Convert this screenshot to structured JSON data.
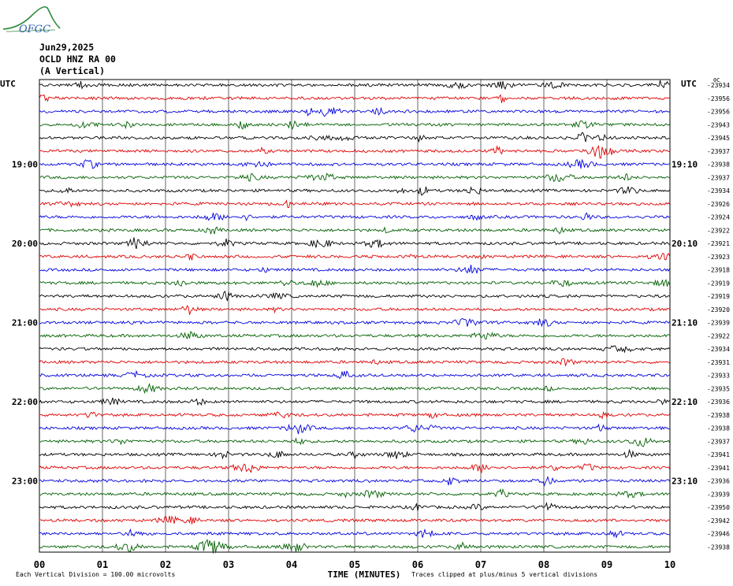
{
  "header": {
    "logo_text": "OFGC",
    "date": "Jun29,2025",
    "station": "OCLD HNZ RA 00",
    "component": "(A Vertical)"
  },
  "colors": {
    "trace_cycle": [
      "#000000",
      "#e00000",
      "#0000e0",
      "#006000"
    ],
    "grid": "#000000",
    "logo": "#2e8b3c"
  },
  "chart_data": {
    "type": "line",
    "title": "",
    "xlabel": "TIME (MINUTES)",
    "x_ticks": [
      "00",
      "01",
      "02",
      "03",
      "04",
      "05",
      "06",
      "07",
      "08",
      "09",
      "10"
    ],
    "xlim": [
      0,
      10
    ],
    "left_axis_label": "UTC",
    "right_axis_label": "UTC",
    "right_corner_label": "0C",
    "left_hour_labels": [
      {
        "trace_index": 6,
        "label": "19:00"
      },
      {
        "trace_index": 12,
        "label": "20:00"
      },
      {
        "trace_index": 18,
        "label": "21:00"
      },
      {
        "trace_index": 24,
        "label": "22:00"
      },
      {
        "trace_index": 30,
        "label": "23:00"
      }
    ],
    "right_hour_labels": [
      {
        "trace_index": 6,
        "label": "19:10"
      },
      {
        "trace_index": 12,
        "label": "20:10"
      },
      {
        "trace_index": 18,
        "label": "21:10"
      },
      {
        "trace_index": 24,
        "label": "22:10"
      },
      {
        "trace_index": 30,
        "label": "23:10"
      }
    ],
    "trace_offsets": [
      "-23934",
      "-23956",
      "-23956",
      "-23943",
      "-23945",
      "-23937",
      "-23938",
      "-23937",
      "-23934",
      "-23926",
      "-23924",
      "-23922",
      "-23921",
      "-23923",
      "-23918",
      "-23919",
      "-23919",
      "-23920",
      "-23939",
      "-23922",
      "-23934",
      "-23931",
      "-23933",
      "-23935",
      "-23936",
      "-23938",
      "-23938",
      "-23937",
      "-23941",
      "-23941",
      "-23936",
      "-23939",
      "-23950",
      "-23942",
      "-23946",
      "-23938"
    ],
    "trace_count": 36,
    "minutes_per_trace": 10,
    "scale_note": "Each Vertical Division =  100.00 microvolts",
    "clip_note": "Traces clipped at plus/minus 5 vertical divisions"
  }
}
